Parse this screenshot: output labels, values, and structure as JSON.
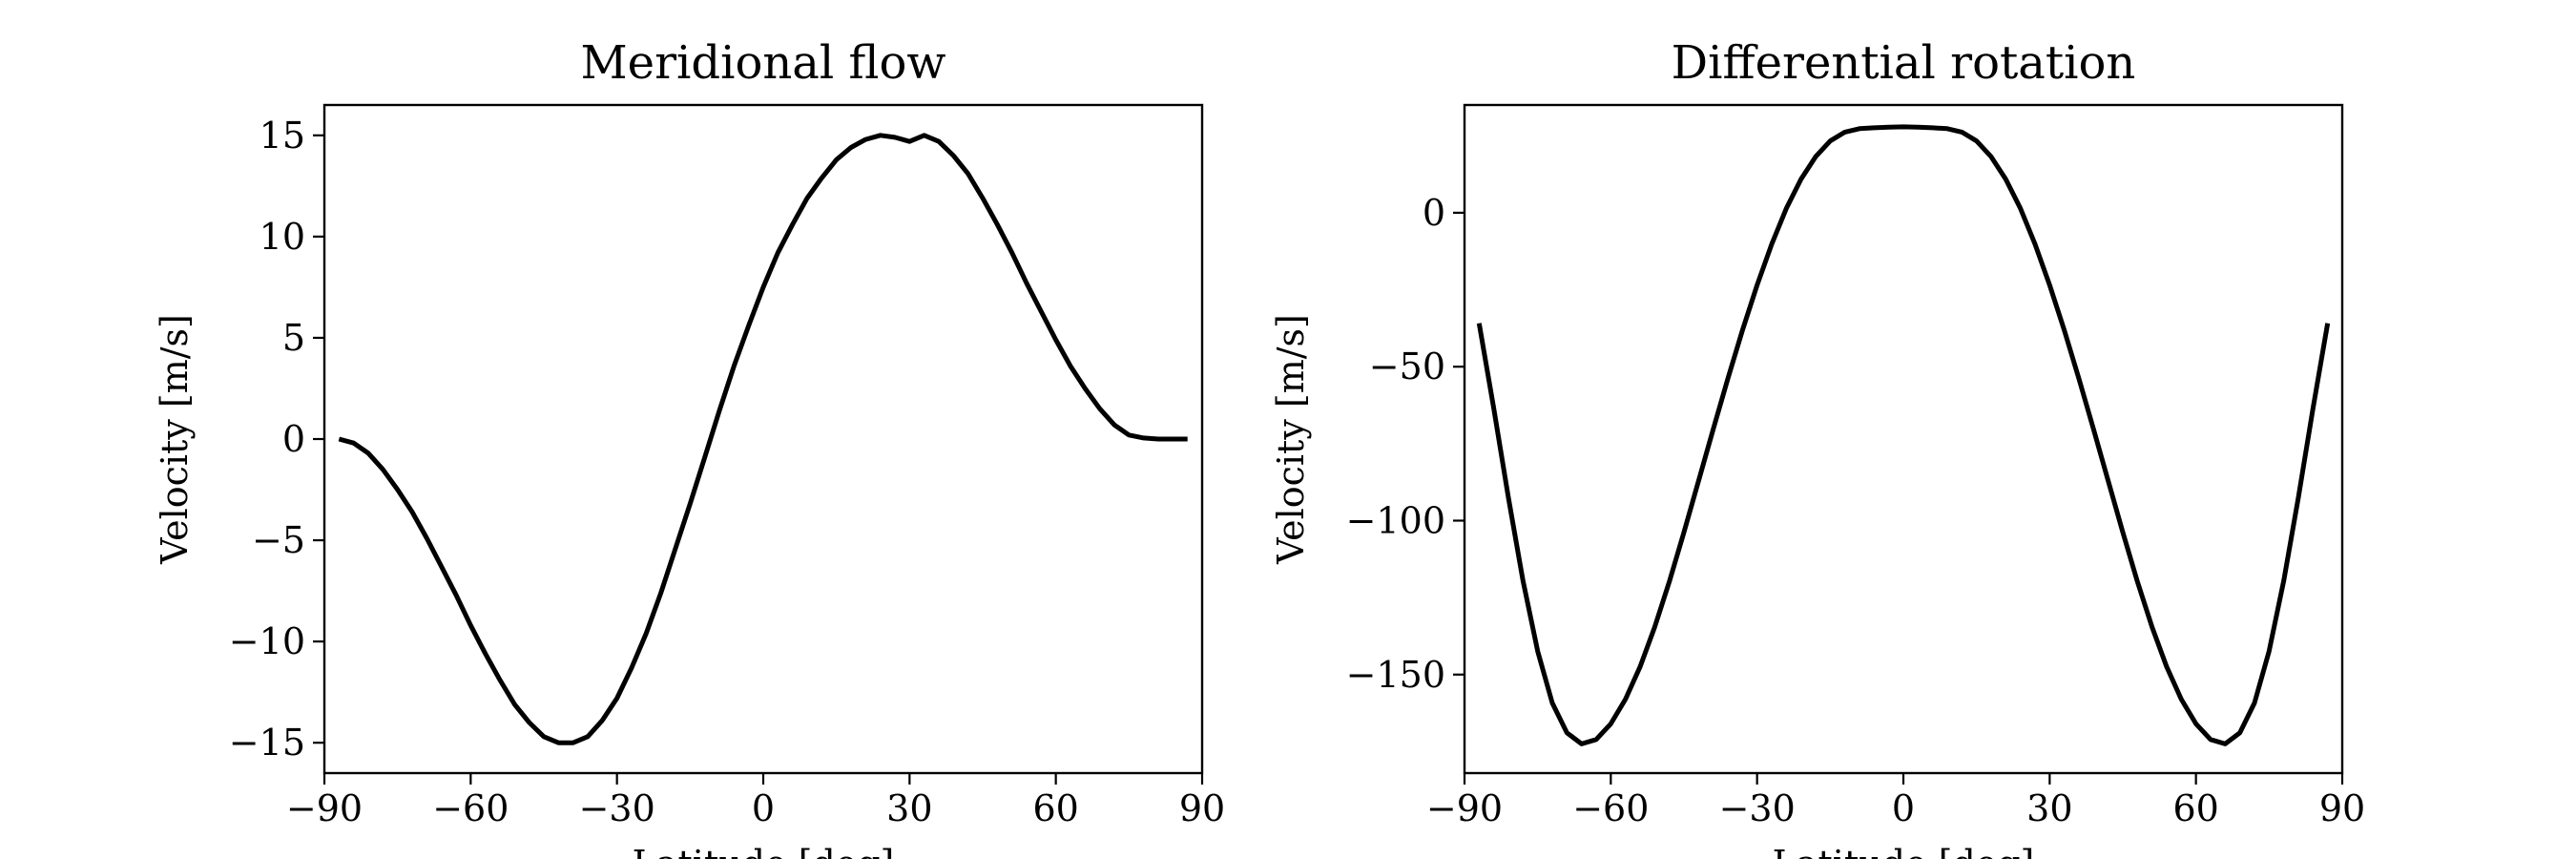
{
  "chart_data": [
    {
      "type": "line",
      "title": "Meridional flow",
      "xlabel": "Latitude [deg]",
      "ylabel": "Velocity [m/s]",
      "xlim": [
        -90,
        90
      ],
      "ylim": [
        -16.5,
        16.5
      ],
      "xticks": [
        -90,
        -60,
        -30,
        0,
        30,
        60,
        90
      ],
      "xtick_labels": [
        "−90",
        "−60",
        "−30",
        "0",
        "30",
        "60",
        "90"
      ],
      "yticks": [
        -15,
        -10,
        -5,
        0,
        5,
        10,
        15
      ],
      "ytick_labels": [
        "−15",
        "−10",
        "−5",
        "0",
        "5",
        "10",
        "15"
      ],
      "grid": false,
      "series": [
        {
          "name": "meridional flow",
          "color": "#000000",
          "x": [
            -87,
            -84,
            -81,
            -78,
            -75,
            -72,
            -69,
            -66,
            -63,
            -60,
            -57,
            -54,
            -51,
            -48,
            -45,
            -42,
            -39,
            -36,
            -33,
            -30,
            -27,
            -24,
            -21,
            -18,
            -15,
            -12,
            -9,
            -6,
            -3,
            0,
            3,
            6,
            9,
            12,
            15,
            18,
            21,
            24,
            27,
            30,
            33,
            36,
            39,
            42,
            45,
            48,
            51,
            54,
            57,
            60,
            63,
            66,
            69,
            72,
            75,
            78,
            81,
            84,
            87
          ],
          "y": [
            0.0,
            -0.2,
            -0.7,
            -1.5,
            -2.5,
            -3.6,
            -4.9,
            -6.3,
            -7.7,
            -9.2,
            -10.6,
            -11.9,
            -13.1,
            -14.0,
            -14.7,
            -15.0,
            -15.0,
            -14.7,
            -13.9,
            -12.8,
            -11.3,
            -9.6,
            -7.6,
            -5.4,
            -3.2,
            -0.9,
            1.4,
            3.6,
            5.6,
            7.5,
            9.2,
            10.6,
            11.9,
            12.9,
            13.8,
            14.4,
            14.8,
            15.0,
            14.9,
            14.7,
            15.0,
            14.7,
            14.0,
            13.1,
            11.9,
            10.6,
            9.2,
            7.7,
            6.3,
            4.9,
            3.6,
            2.5,
            1.5,
            0.7,
            0.2,
            0.05,
            0.0,
            0.0,
            0.0
          ]
        }
      ]
    },
    {
      "type": "line",
      "title": "Differential rotation",
      "xlabel": "Latitude [deg]",
      "ylabel": "Velocity [m/s]",
      "xlim": [
        -90,
        90
      ],
      "ylim": [
        -182,
        35
      ],
      "xticks": [
        -90,
        -60,
        -30,
        0,
        30,
        60,
        90
      ],
      "xtick_labels": [
        "−90",
        "−60",
        "−30",
        "0",
        "30",
        "60",
        "90"
      ],
      "yticks": [
        -150,
        -100,
        -50,
        0
      ],
      "ytick_labels": [
        "−150",
        "−100",
        "−50",
        "0"
      ],
      "grid": false,
      "series": [
        {
          "name": "differential rotation",
          "color": "#000000",
          "x": [
            -87,
            -84,
            -81,
            -78,
            -75,
            -72,
            -69,
            -66,
            -63,
            -60,
            -57,
            -54,
            -51,
            -48,
            -45,
            -42,
            -39,
            -36,
            -33,
            -30,
            -27,
            -24,
            -21,
            -18,
            -15,
            -12,
            -9,
            -6,
            -3,
            0,
            3,
            6,
            9,
            12,
            15,
            18,
            21,
            24,
            27,
            30,
            33,
            36,
            39,
            42,
            45,
            48,
            51,
            54,
            57,
            60,
            63,
            66,
            69,
            72,
            75,
            78,
            81,
            84,
            87
          ],
          "y": [
            -35.9,
            -63.6,
            -92.5,
            -119.5,
            -142.4,
            -159.2,
            -168.9,
            -172.5,
            -171.1,
            -166.0,
            -158.0,
            -147.5,
            -134.6,
            -119.8,
            -103.8,
            -87.1,
            -70.3,
            -53.9,
            -38.2,
            -23.5,
            -10.2,
            1.4,
            10.9,
            18.2,
            23.3,
            26.2,
            27.3,
            27.6,
            27.8,
            27.9,
            27.8,
            27.6,
            27.3,
            26.2,
            23.3,
            18.2,
            10.9,
            1.4,
            -10.2,
            -23.5,
            -38.2,
            -53.9,
            -70.3,
            -87.1,
            -103.8,
            -119.8,
            -134.6,
            -147.5,
            -158.0,
            -166.0,
            -171.1,
            -172.5,
            -168.9,
            -159.2,
            -142.4,
            -119.5,
            -92.5,
            -63.6,
            -35.9
          ]
        }
      ]
    }
  ]
}
